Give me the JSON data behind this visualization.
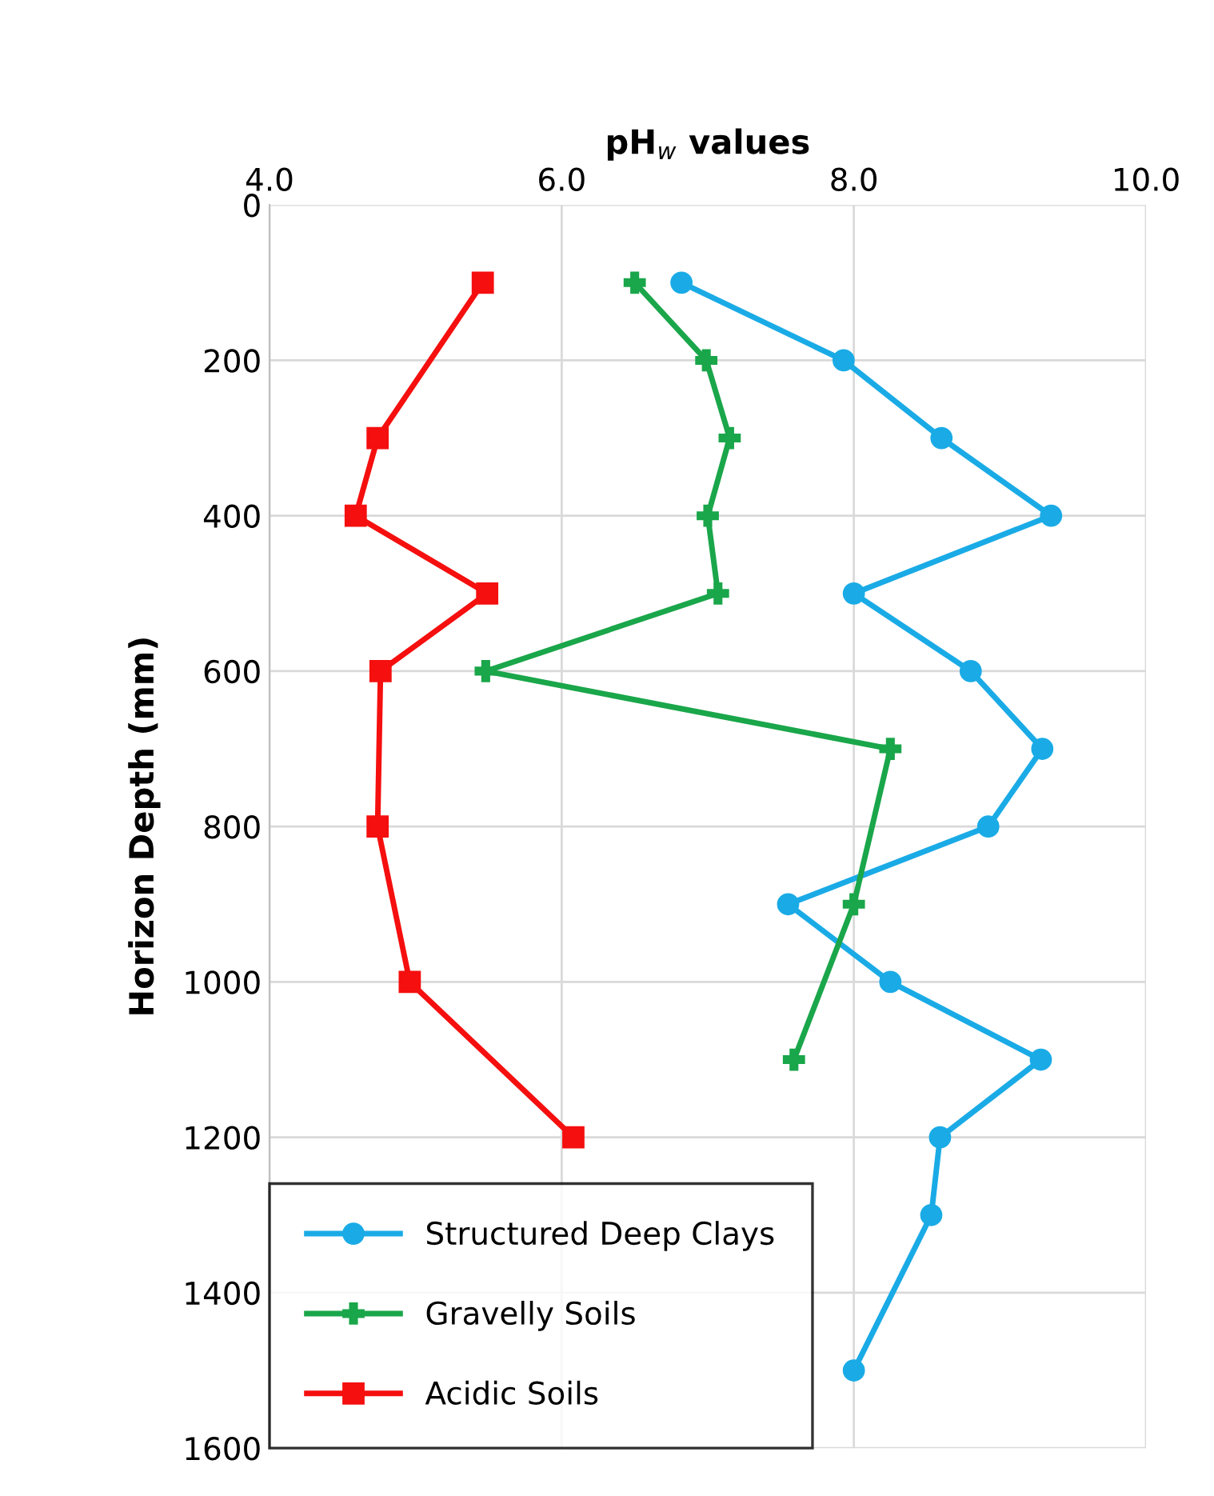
{
  "chart_data": {
    "type": "line",
    "xlabel": "pH$_{w}$ values",
    "ylabel": "Horizon Depth (mm)",
    "xlim": [
      4.0,
      10.0
    ],
    "xticks": [
      {
        "value": 4,
        "label": "4.0"
      },
      {
        "value": 6,
        "label": "6.0"
      },
      {
        "value": 8,
        "label": "8.0"
      },
      {
        "value": 10,
        "label": "10.0"
      }
    ],
    "ylim": [
      1600,
      0
    ],
    "yticks": [
      0,
      200,
      400,
      600,
      800,
      1000,
      1200,
      1400,
      1600
    ],
    "grid": true,
    "legend": "bottom left",
    "series": [
      {
        "name": "Structured Deep Clays",
        "color": "#1aabe6",
        "marker": "circle",
        "x": [
          6.82,
          7.93,
          8.6,
          9.35,
          8.0,
          8.8,
          9.29,
          8.92,
          7.55,
          8.25,
          9.28,
          8.59,
          8.53,
          8.0
        ],
        "values": [
          100,
          200,
          300,
          400,
          500,
          600,
          700,
          800,
          900,
          1000,
          1100,
          1200,
          1300,
          1500
        ]
      },
      {
        "name": "Gravelly Soils",
        "color": "#1aa64a",
        "marker": "cross",
        "x": [
          6.5,
          6.99,
          7.15,
          7.0,
          7.07,
          5.48,
          8.25,
          8.0,
          7.59
        ],
        "values": [
          100,
          200,
          300,
          400,
          500,
          600,
          700,
          900,
          1100
        ]
      },
      {
        "name": "Acidic Soils",
        "color": "#f50f0f",
        "marker": "square",
        "x": [
          5.46,
          4.74,
          4.59,
          5.49,
          4.76,
          4.74,
          4.96,
          6.08
        ],
        "values": [
          100,
          300,
          400,
          500,
          600,
          800,
          1000,
          1200
        ]
      }
    ]
  }
}
